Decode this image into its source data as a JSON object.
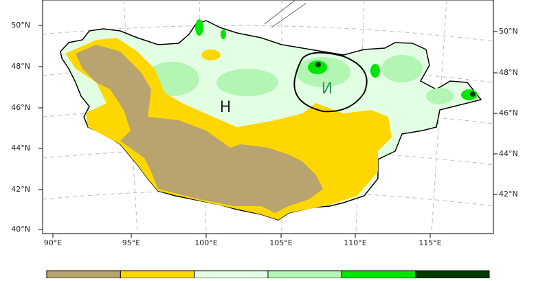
{
  "map": {
    "lat_labels_left": [
      "50°N",
      "48°N",
      "46°N",
      "44°N",
      "42°N",
      "40°N"
    ],
    "lat_labels_right": [
      "50°N",
      "48°N",
      "46°N",
      "44°N",
      "42°N"
    ],
    "lon_labels": [
      "90°E",
      "95°E",
      "100°E",
      "105°E",
      "110°E",
      "115°E"
    ],
    "annotations": [
      "Н",
      "И"
    ],
    "legend_colors": [
      "#b9a36e",
      "#ffd700",
      "#e3ffe3",
      "#b3f5b3",
      "#00e600",
      "#003a00"
    ]
  }
}
